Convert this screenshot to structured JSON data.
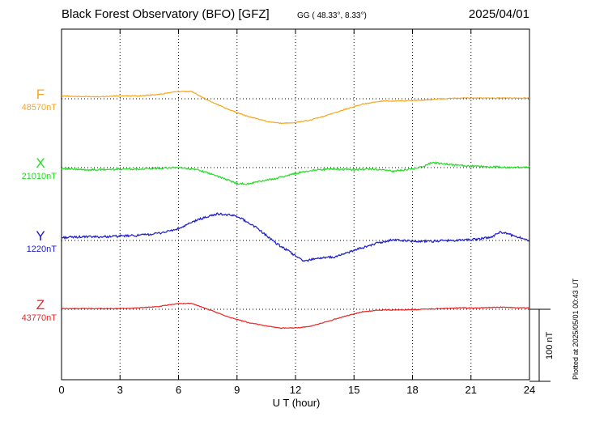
{
  "header": {
    "title": "Black Forest Observatory (BFO)  [GFZ]",
    "coords": "GG ( 48.33°,   8.33°)",
    "date": "2025/04/01"
  },
  "footer": {
    "xlabel": "U T (hour)",
    "scale_bar": "100 nT",
    "plotted": "Plotted at 2025/05/01 00:43 UT"
  },
  "chart_data": {
    "type": "line",
    "title": "Black Forest Observatory (BFO)  [GFZ]",
    "xlabel": "U T (hour)",
    "ylabel": "",
    "xlim": [
      0,
      24
    ],
    "xticks": [
      0,
      3,
      6,
      9,
      12,
      15,
      18,
      21,
      24
    ],
    "xtick_labels": [
      "0",
      "3",
      "6",
      "9",
      "12",
      "15",
      "18",
      "21",
      "24"
    ],
    "grid": true,
    "scale_bar_nT": 100,
    "series": [
      {
        "name": "F",
        "baseline_label": "48570nT",
        "baseline_nT": 48570,
        "color": "#f5a623",
        "x": [
          0,
          1,
          2,
          3,
          4,
          5,
          5.8,
          6.7,
          7.5,
          8.5,
          9.5,
          10.5,
          11.2,
          12,
          12.7,
          13.5,
          14.5,
          15.5,
          16.5,
          17.5,
          18.5,
          19.5,
          20.5,
          21.5,
          22.5,
          23.5,
          24
        ],
        "y": [
          48574,
          48573,
          48573,
          48574,
          48574,
          48576,
          48580,
          48580,
          48568,
          48556,
          48546,
          48539,
          48536,
          48537,
          48540,
          48546,
          48555,
          48563,
          48567,
          48567,
          48568,
          48570,
          48571,
          48571,
          48571,
          48571,
          48571
        ]
      },
      {
        "name": "X",
        "baseline_label": "21010nT",
        "baseline_nT": 21010,
        "color": "#22dd22",
        "x": [
          0,
          1,
          2,
          3,
          4,
          5,
          6,
          7,
          8,
          9,
          9.5,
          10,
          11,
          12,
          13,
          14,
          15,
          16,
          17,
          18,
          18.5,
          19,
          20,
          21,
          22,
          23,
          24
        ],
        "y": [
          21009,
          21007,
          21007,
          21008,
          21008,
          21009,
          21010,
          21007,
          20998,
          20988,
          20987,
          20990,
          20995,
          21002,
          21007,
          21008,
          21007,
          21008,
          21005,
          21008,
          21011,
          21017,
          21014,
          21012,
          21011,
          21010,
          21011
        ]
      },
      {
        "name": "Y",
        "baseline_label": "1220nT",
        "baseline_nT": 1220,
        "color": "#1a1acc",
        "x": [
          0,
          1,
          2,
          3,
          4,
          5,
          6,
          7,
          8,
          9,
          10,
          11,
          12,
          12.4,
          13,
          14,
          15,
          16,
          17,
          18,
          19,
          20,
          21,
          22,
          22.5,
          23,
          24
        ],
        "y": [
          1224,
          1225,
          1225,
          1226,
          1227,
          1230,
          1236,
          1249,
          1257,
          1254,
          1238,
          1216,
          1199,
          1191,
          1195,
          1197,
          1206,
          1215,
          1221,
          1219,
          1219,
          1220,
          1221,
          1224,
          1232,
          1228,
          1220
        ]
      },
      {
        "name": "Z",
        "baseline_label": "43770nT",
        "baseline_nT": 43770,
        "color": "#ee2222",
        "x": [
          0,
          1,
          2,
          3,
          4,
          5,
          6,
          6.7,
          7.5,
          8.5,
          9.5,
          10.5,
          11.2,
          12,
          12.7,
          13.5,
          14.5,
          15.5,
          16.5,
          17.5,
          18.5,
          19.5,
          20.5,
          21.5,
          22.5,
          23.5,
          24
        ],
        "y": [
          43771,
          43771,
          43771,
          43771,
          43772,
          43774,
          43778,
          43778,
          43770,
          43760,
          43752,
          43747,
          43744,
          43744,
          43746,
          43752,
          43760,
          43767,
          43769,
          43769,
          43770,
          43771,
          43772,
          43772,
          43773,
          43772,
          43772
        ]
      }
    ]
  }
}
